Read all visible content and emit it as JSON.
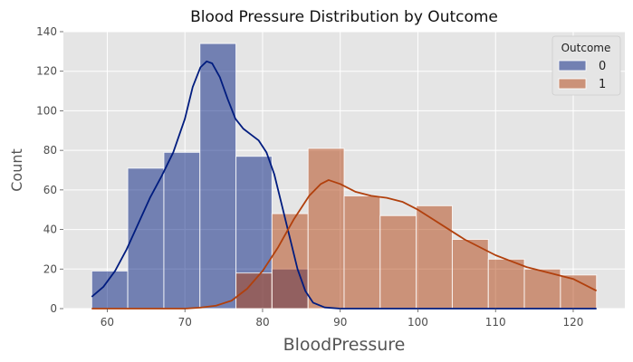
{
  "chart_data": {
    "type": "bar",
    "title": "Blood Pressure Distribution by Outcome",
    "xlabel": "BloodPressure",
    "ylabel": "Count",
    "xlim": [
      54.35,
      126.65
    ],
    "ylim": [
      0,
      140
    ],
    "xticks": [
      60,
      70,
      80,
      90,
      100,
      110,
      120
    ],
    "yticks": [
      0,
      20,
      40,
      60,
      80,
      100,
      120,
      140
    ],
    "grid": true,
    "legend": {
      "title": "Outcome",
      "placement": "top-right"
    },
    "bin_edges": [
      58,
      62.64,
      67.29,
      71.93,
      76.57,
      81.21,
      85.86,
      90.5,
      95.14,
      99.79,
      104.43,
      109.07,
      113.71,
      118.36,
      123
    ],
    "series": [
      {
        "name": "0",
        "color": "#001c7f",
        "counts": [
          19,
          71,
          79,
          134,
          77,
          20,
          0,
          0,
          0,
          0,
          0,
          0,
          0,
          0
        ],
        "kde": [
          [
            58,
            6
          ],
          [
            59.5,
            11
          ],
          [
            61,
            19
          ],
          [
            62.5,
            30
          ],
          [
            64,
            43
          ],
          [
            65.5,
            56
          ],
          [
            67,
            67
          ],
          [
            68.5,
            79
          ],
          [
            70,
            96
          ],
          [
            71,
            112
          ],
          [
            72,
            122
          ],
          [
            72.8,
            125
          ],
          [
            73.5,
            124
          ],
          [
            74.5,
            117
          ],
          [
            75.5,
            106
          ],
          [
            76.5,
            96
          ],
          [
            77.5,
            91
          ],
          [
            78.5,
            88
          ],
          [
            79.5,
            85
          ],
          [
            80.5,
            79
          ],
          [
            81.5,
            68
          ],
          [
            82.5,
            52
          ],
          [
            83.5,
            36
          ],
          [
            84.5,
            20
          ],
          [
            85.5,
            9
          ],
          [
            86.5,
            3
          ],
          [
            88,
            0.6
          ],
          [
            90,
            0
          ],
          [
            123,
            0
          ]
        ]
      },
      {
        "name": "1",
        "color": "#b1400d",
        "counts": [
          0,
          0,
          0,
          0,
          18,
          48,
          81,
          57,
          47,
          52,
          35,
          25,
          20,
          17
        ],
        "kde": [
          [
            58,
            0
          ],
          [
            70,
            0
          ],
          [
            72,
            0.5
          ],
          [
            74,
            1.5
          ],
          [
            76,
            4
          ],
          [
            78,
            10
          ],
          [
            80,
            19
          ],
          [
            82,
            31
          ],
          [
            84,
            45
          ],
          [
            86,
            57
          ],
          [
            87.5,
            63
          ],
          [
            88.5,
            65
          ],
          [
            90,
            63
          ],
          [
            92,
            59
          ],
          [
            94,
            57
          ],
          [
            96,
            56
          ],
          [
            98,
            54
          ],
          [
            100,
            50
          ],
          [
            102,
            45
          ],
          [
            104,
            40
          ],
          [
            106,
            35
          ],
          [
            108,
            31
          ],
          [
            110,
            27
          ],
          [
            112,
            24
          ],
          [
            114,
            21
          ],
          [
            116,
            19
          ],
          [
            118,
            17
          ],
          [
            120,
            15
          ],
          [
            122,
            11
          ],
          [
            123,
            9
          ]
        ]
      }
    ]
  }
}
